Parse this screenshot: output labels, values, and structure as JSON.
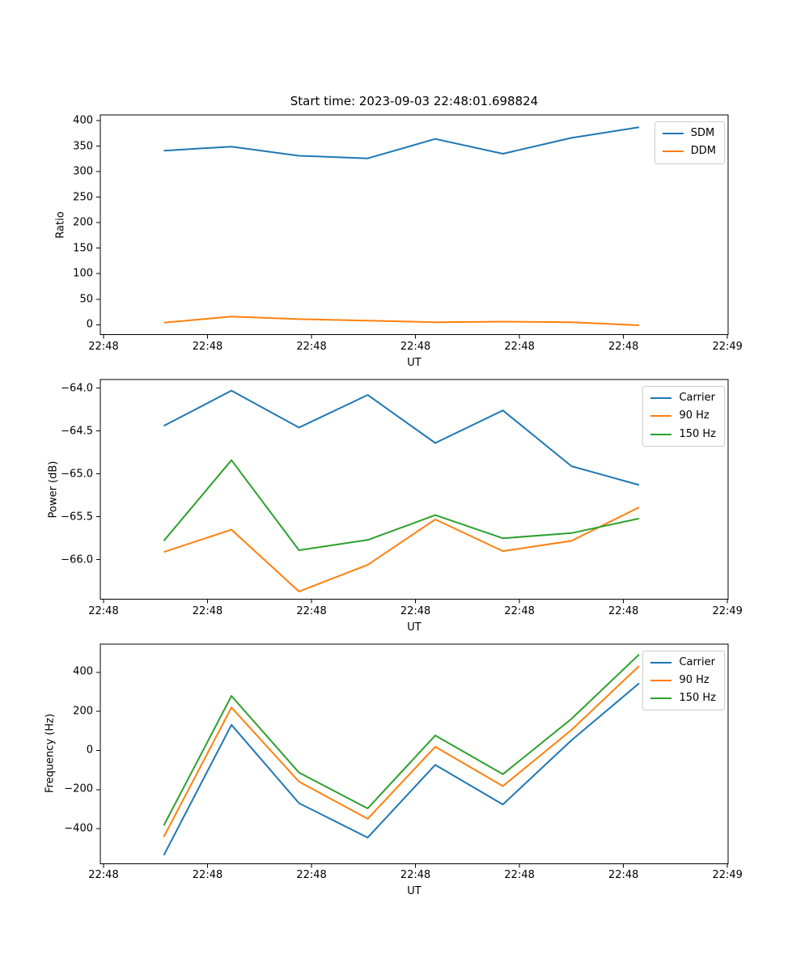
{
  "title": "Start time: 2023-09-03 22:48:01.698824",
  "x_axis": {
    "label": "UT",
    "domain_seconds": [
      -0.31,
      60.06
    ],
    "ticks": [
      {
        "t": 0,
        "label": "22:48"
      },
      {
        "t": 10,
        "label": "22:48"
      },
      {
        "t": 20,
        "label": "22:48"
      },
      {
        "t": 30,
        "label": "22:48"
      },
      {
        "t": 40,
        "label": "22:48"
      },
      {
        "t": 50,
        "label": "22:48"
      },
      {
        "t": 60,
        "label": "22:49"
      }
    ]
  },
  "time_seconds": [
    5.8,
    12.3,
    18.8,
    25.4,
    31.9,
    38.4,
    45.0,
    51.5
  ],
  "chart_data": [
    {
      "type": "line",
      "ylabel": "Ratio",
      "xlabel": "UT",
      "grid": false,
      "legend_position": "upper right",
      "ylim": [
        -19.3,
        411.1
      ],
      "yticks": [
        {
          "v": 0,
          "label": "0"
        },
        {
          "v": 50,
          "label": "50"
        },
        {
          "v": 100,
          "label": "100"
        },
        {
          "v": 150,
          "label": "150"
        },
        {
          "v": 200,
          "label": "200"
        },
        {
          "v": 250,
          "label": "250"
        },
        {
          "v": 300,
          "label": "300"
        },
        {
          "v": 350,
          "label": "350"
        },
        {
          "v": 400,
          "label": "400"
        }
      ],
      "series": [
        {
          "name": "SDM",
          "color": "#1f77b4",
          "values": [
            341,
            349,
            331,
            326,
            364,
            335,
            366,
            387
          ]
        },
        {
          "name": "DDM",
          "color": "#ff7f0e",
          "values": [
            4,
            16,
            11,
            8,
            5,
            6,
            5,
            -1
          ]
        }
      ]
    },
    {
      "type": "line",
      "ylabel": "Power (dB)",
      "xlabel": "UT",
      "grid": false,
      "legend_position": "upper right",
      "ylim": [
        -66.46,
        -63.9
      ],
      "yticks": [
        {
          "v": -64.0,
          "label": "−64.0"
        },
        {
          "v": -64.5,
          "label": "−64.5"
        },
        {
          "v": -65.0,
          "label": "−65.0"
        },
        {
          "v": -65.5,
          "label": "−65.5"
        },
        {
          "v": -66.0,
          "label": "−66.0"
        }
      ],
      "series": [
        {
          "name": "Carrier",
          "color": "#1f77b4",
          "values": [
            -64.44,
            -64.03,
            -64.46,
            -64.08,
            -64.64,
            -64.26,
            -64.91,
            -65.13
          ]
        },
        {
          "name": "90 Hz",
          "color": "#ff7f0e",
          "values": [
            -65.91,
            -65.65,
            -66.37,
            -66.06,
            -65.53,
            -65.9,
            -65.78,
            -65.39
          ]
        },
        {
          "name": "150 Hz",
          "color": "#2ca02c",
          "values": [
            -65.78,
            -64.84,
            -65.89,
            -65.77,
            -65.48,
            -65.75,
            -65.69,
            -65.52
          ]
        }
      ]
    },
    {
      "type": "line",
      "ylabel": "Frequency (Hz)",
      "xlabel": "UT",
      "grid": false,
      "legend_position": "upper right",
      "ylim": [
        -579,
        544
      ],
      "yticks": [
        {
          "v": 400,
          "label": "400"
        },
        {
          "v": 200,
          "label": "200"
        },
        {
          "v": 0,
          "label": "0"
        },
        {
          "v": -200,
          "label": "−200"
        },
        {
          "v": -400,
          "label": "−400"
        }
      ],
      "series": [
        {
          "name": "Carrier",
          "color": "#1f77b4",
          "values": [
            -535,
            131,
            -269,
            -445,
            -73,
            -276,
            52,
            344
          ]
        },
        {
          "name": "90 Hz",
          "color": "#ff7f0e",
          "values": [
            -441,
            220,
            -159,
            -349,
            19,
            -182,
            105,
            432
          ]
        },
        {
          "name": "150 Hz",
          "color": "#2ca02c",
          "values": [
            -383,
            279,
            -113,
            -296,
            77,
            -121,
            162,
            491
          ]
        }
      ]
    }
  ]
}
